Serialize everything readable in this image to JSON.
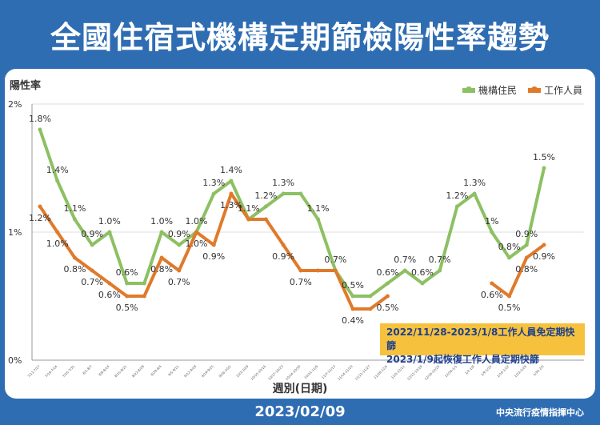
{
  "header": {
    "title": "全國住宿式機構定期篩檢陽性率趨勢"
  },
  "footer": {
    "date": "2023/02/09",
    "org": "中央流行疫情指揮中心"
  },
  "note": {
    "line1": "2022/11/28-2023/1/8工作人員免定期快篩",
    "line2": "2023/1/9起恢復工作人員定期快篩",
    "color": "#f6c23e"
  },
  "chart_data": {
    "type": "line",
    "title": "全國住宿式機構定期篩檢陽性率趨勢",
    "ylabel": "陽性率",
    "xlabel": "週別(日期)",
    "ylim": [
      0,
      2
    ],
    "yticks": [
      "0%",
      "1%",
      "2%"
    ],
    "categories": [
      "7/11-7/17",
      "7/18-7/24",
      "7/25-7/31",
      "8/1-8/7",
      "8/8-8/14",
      "8/15-8/21",
      "8/22-8/28",
      "8/29-9/4",
      "9/5-9/11",
      "9/12-9/18",
      "9/19-9/25",
      "9/26-10/2",
      "10/3-10/9",
      "10/10-10/16",
      "10/17-10/23",
      "10/24-10/30",
      "10/31-11/6",
      "11/7-11/13",
      "11/14-11/20",
      "11/21-11/27",
      "11/28-12/4",
      "12/5-12/11",
      "12/12-12/18",
      "12/19-12/25",
      "12/26-1/1",
      "1/2-1/8",
      "1/9-1/15",
      "1/16-1/22",
      "1/23-1/29",
      "1/30-2/5"
    ],
    "series": [
      {
        "name": "機構住民",
        "color": "#8dc063",
        "values": [
          1.8,
          1.4,
          1.1,
          0.9,
          1.0,
          0.6,
          0.6,
          1.0,
          0.9,
          1.0,
          1.3,
          1.4,
          1.1,
          1.2,
          1.3,
          1.3,
          1.1,
          0.7,
          0.5,
          0.5,
          0.6,
          0.7,
          0.6,
          0.7,
          1.2,
          1.3,
          1.0,
          0.8,
          0.9,
          1.5
        ],
        "labels": [
          "1.8%",
          "1.4%",
          "1.1%",
          "0.9%",
          "1.0%",
          "0.6%",
          "",
          "1.0%",
          "0.9%",
          "1.0%",
          "1.3%",
          "1.4%",
          "1.1%",
          "1.2%",
          "1.3%",
          "",
          "1.1%",
          "0.7%",
          "0.5%",
          "",
          "0.6%",
          "0.7%",
          "0.6%",
          "0.7%",
          "1.2%",
          "1.3%",
          "1%",
          "0.8%",
          "0.9%",
          "1.5%"
        ]
      },
      {
        "name": "工作人員",
        "color": "#e07a2b",
        "values": [
          1.2,
          1.0,
          0.8,
          0.7,
          0.6,
          0.5,
          0.5,
          0.8,
          0.7,
          1.0,
          0.9,
          1.3,
          1.1,
          1.1,
          0.9,
          0.7,
          0.7,
          0.7,
          0.4,
          0.4,
          0.5,
          null,
          null,
          null,
          null,
          null,
          0.6,
          0.5,
          0.8,
          0.9
        ],
        "labels": [
          "1.2%",
          "1.0%",
          "0.8%",
          "0.7%",
          "0.6%",
          "0.5%",
          "",
          "0.8%",
          "0.7%",
          "1.0%",
          "0.9%",
          "1.3%",
          "",
          "",
          "0.9%",
          "0.7%",
          "",
          "",
          "0.4%",
          "",
          "0.5%",
          "",
          "",
          "",
          "",
          "",
          "0.6%",
          "0.5%",
          "0.8%",
          "0.9%"
        ]
      }
    ]
  }
}
